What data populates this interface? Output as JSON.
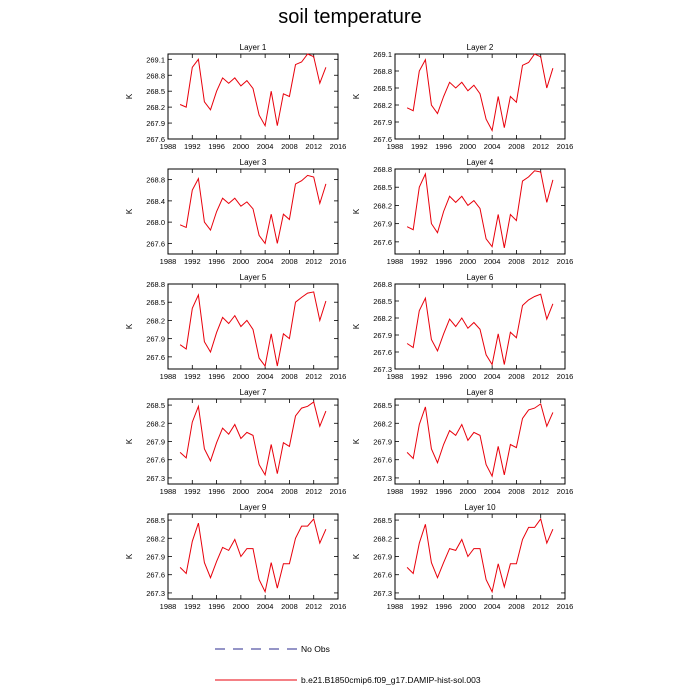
{
  "title": "soil temperature",
  "colors": {
    "obs": "#2b2b8f",
    "model": "#e8000b"
  },
  "legend": {
    "placement": "bottom-center",
    "entries": [
      {
        "label": "No Obs",
        "style": "dashed",
        "color": "#2b2b8f"
      },
      {
        "label": "b.e21.B1850cmip6.f09_g17.DAMIP-hist-sol.003",
        "style": "solid",
        "color": "#e8000b"
      }
    ]
  },
  "chart_data": [
    {
      "type": "line",
      "title": "Layer 1",
      "ylabel": "K",
      "xlim": [
        1988,
        2016
      ],
      "xticks": [
        1988,
        1992,
        1996,
        2000,
        2004,
        2008,
        2012,
        2016
      ],
      "ylim": [
        267.6,
        269.2
      ],
      "yticks": [
        "267.6",
        "267.9",
        "268.2",
        "268.5",
        "268.8",
        "269.1"
      ],
      "ytick_values": [
        267.6,
        267.9,
        268.2,
        268.5,
        268.8,
        269.1
      ],
      "x": [
        1990,
        1991,
        1992,
        1993,
        1994,
        1995,
        1996,
        1997,
        1998,
        1999,
        2000,
        2001,
        2002,
        2003,
        2004,
        2005,
        2006,
        2007,
        2008,
        2009,
        2010,
        2011,
        2012,
        2013,
        2014
      ],
      "series": [
        {
          "values": [
            268.25,
            268.2,
            268.95,
            269.1,
            268.3,
            268.15,
            268.5,
            268.75,
            268.65,
            268.75,
            268.6,
            268.7,
            268.55,
            268.05,
            267.85,
            268.5,
            267.85,
            268.45,
            268.4,
            269.0,
            269.05,
            269.2,
            269.15,
            268.65,
            268.95
          ]
        }
      ]
    },
    {
      "type": "line",
      "title": "Layer 2",
      "ylabel": "K",
      "xlim": [
        1988,
        2016
      ],
      "xticks": [
        1988,
        1992,
        1996,
        2000,
        2004,
        2008,
        2012,
        2016
      ],
      "ylim": [
        267.6,
        269.1
      ],
      "yticks": [
        "267.6",
        "267.9",
        "268.2",
        "268.5",
        "268.8",
        "269.1"
      ],
      "ytick_values": [
        267.6,
        267.9,
        268.2,
        268.5,
        268.8,
        269.1
      ],
      "x": [
        1990,
        1991,
        1992,
        1993,
        1994,
        1995,
        1996,
        1997,
        1998,
        1999,
        2000,
        2001,
        2002,
        2003,
        2004,
        2005,
        2006,
        2007,
        2008,
        2009,
        2010,
        2011,
        2012,
        2013,
        2014
      ],
      "series": [
        {
          "values": [
            268.15,
            268.1,
            268.8,
            269.0,
            268.2,
            268.05,
            268.35,
            268.6,
            268.5,
            268.6,
            268.45,
            268.55,
            268.4,
            267.95,
            267.75,
            268.35,
            267.8,
            268.35,
            268.25,
            268.9,
            268.95,
            269.1,
            269.05,
            268.5,
            268.85
          ]
        }
      ]
    },
    {
      "type": "line",
      "title": "Layer 3",
      "ylabel": "K",
      "xlim": [
        1988,
        2016
      ],
      "xticks": [
        1988,
        1992,
        1996,
        2000,
        2004,
        2008,
        2012,
        2016
      ],
      "ylim": [
        267.4,
        269.0
      ],
      "yticks": [
        "267.6",
        "268.0",
        "268.4",
        "268.8"
      ],
      "ytick_values": [
        267.6,
        268.0,
        268.4,
        268.8
      ],
      "x": [
        1990,
        1991,
        1992,
        1993,
        1994,
        1995,
        1996,
        1997,
        1998,
        1999,
        2000,
        2001,
        2002,
        2003,
        2004,
        2005,
        2006,
        2007,
        2008,
        2009,
        2010,
        2011,
        2012,
        2013,
        2014
      ],
      "series": [
        {
          "values": [
            267.95,
            267.9,
            268.6,
            268.82,
            268.0,
            267.85,
            268.2,
            268.45,
            268.35,
            268.45,
            268.3,
            268.38,
            268.25,
            267.75,
            267.6,
            268.15,
            267.6,
            268.15,
            268.05,
            268.72,
            268.78,
            268.88,
            268.85,
            268.35,
            268.72
          ]
        }
      ]
    },
    {
      "type": "line",
      "title": "Layer 4",
      "ylabel": "K",
      "xlim": [
        1988,
        2016
      ],
      "xticks": [
        1988,
        1992,
        1996,
        2000,
        2004,
        2008,
        2012,
        2016
      ],
      "ylim": [
        267.4,
        268.8
      ],
      "yticks": [
        "267.6",
        "267.9",
        "268.2",
        "268.5",
        "268.8"
      ],
      "ytick_values": [
        267.6,
        267.9,
        268.2,
        268.5,
        268.8
      ],
      "x": [
        1990,
        1991,
        1992,
        1993,
        1994,
        1995,
        1996,
        1997,
        1998,
        1999,
        2000,
        2001,
        2002,
        2003,
        2004,
        2005,
        2006,
        2007,
        2008,
        2009,
        2010,
        2011,
        2012,
        2013,
        2014
      ],
      "series": [
        {
          "values": [
            267.85,
            267.8,
            268.5,
            268.72,
            267.9,
            267.75,
            268.1,
            268.35,
            268.25,
            268.35,
            268.2,
            268.28,
            268.15,
            267.65,
            267.52,
            268.05,
            267.5,
            268.05,
            267.95,
            268.6,
            268.67,
            268.77,
            268.75,
            268.25,
            268.62
          ]
        }
      ]
    },
    {
      "type": "line",
      "title": "Layer 5",
      "ylabel": "K",
      "xlim": [
        1988,
        2016
      ],
      "xticks": [
        1988,
        1992,
        1996,
        2000,
        2004,
        2008,
        2012,
        2016
      ],
      "ylim": [
        267.4,
        268.8
      ],
      "yticks": [
        "267.6",
        "267.9",
        "268.2",
        "268.5",
        "268.8"
      ],
      "ytick_values": [
        267.6,
        267.9,
        268.2,
        268.5,
        268.8
      ],
      "x": [
        1990,
        1991,
        1992,
        1993,
        1994,
        1995,
        1996,
        1997,
        1998,
        1999,
        2000,
        2001,
        2002,
        2003,
        2004,
        2005,
        2006,
        2007,
        2008,
        2009,
        2010,
        2011,
        2012,
        2013,
        2014
      ],
      "series": [
        {
          "values": [
            267.8,
            267.73,
            268.4,
            268.62,
            267.85,
            267.68,
            268.0,
            268.25,
            268.15,
            268.28,
            268.1,
            268.2,
            268.05,
            267.58,
            267.45,
            267.98,
            267.45,
            267.98,
            267.9,
            268.5,
            268.58,
            268.65,
            268.67,
            268.2,
            268.52
          ]
        }
      ]
    },
    {
      "type": "line",
      "title": "Layer 6",
      "ylabel": "K",
      "xlim": [
        1988,
        2016
      ],
      "xticks": [
        1988,
        1992,
        1996,
        2000,
        2004,
        2008,
        2012,
        2016
      ],
      "ylim": [
        267.3,
        268.8
      ],
      "yticks": [
        "267.3",
        "267.6",
        "267.9",
        "268.2",
        "268.5",
        "268.8"
      ],
      "ytick_values": [
        267.3,
        267.6,
        267.9,
        268.2,
        268.5,
        268.8
      ],
      "x": [
        1990,
        1991,
        1992,
        1993,
        1994,
        1995,
        1996,
        1997,
        1998,
        1999,
        2000,
        2001,
        2002,
        2003,
        2004,
        2005,
        2006,
        2007,
        2008,
        2009,
        2010,
        2011,
        2012,
        2013,
        2014
      ],
      "series": [
        {
          "values": [
            267.75,
            267.68,
            268.33,
            268.55,
            267.82,
            267.62,
            267.92,
            268.18,
            268.05,
            268.2,
            268.02,
            268.12,
            268.0,
            267.55,
            267.38,
            267.92,
            267.38,
            267.95,
            267.85,
            268.42,
            268.52,
            268.58,
            268.62,
            268.18,
            268.45
          ]
        }
      ]
    },
    {
      "type": "line",
      "title": "Layer 7",
      "ylabel": "K",
      "xlim": [
        1988,
        2016
      ],
      "xticks": [
        1988,
        1992,
        1996,
        2000,
        2004,
        2008,
        2012,
        2016
      ],
      "ylim": [
        267.2,
        268.6
      ],
      "yticks": [
        "267.3",
        "267.6",
        "267.9",
        "268.2",
        "268.5"
      ],
      "ytick_values": [
        267.3,
        267.6,
        267.9,
        268.2,
        268.5
      ],
      "x": [
        1990,
        1991,
        1992,
        1993,
        1994,
        1995,
        1996,
        1997,
        1998,
        1999,
        2000,
        2001,
        2002,
        2003,
        2004,
        2005,
        2006,
        2007,
        2008,
        2009,
        2010,
        2011,
        2012,
        2013,
        2014
      ],
      "series": [
        {
          "values": [
            267.72,
            267.63,
            268.22,
            268.48,
            267.78,
            267.58,
            267.88,
            268.12,
            268.02,
            268.18,
            267.95,
            268.05,
            268.0,
            267.52,
            267.35,
            267.85,
            267.37,
            267.88,
            267.82,
            268.32,
            268.45,
            268.48,
            268.55,
            268.15,
            268.4
          ]
        }
      ]
    },
    {
      "type": "line",
      "title": "Layer 8",
      "ylabel": "K",
      "xlim": [
        1988,
        2016
      ],
      "xticks": [
        1988,
        1992,
        1996,
        2000,
        2004,
        2008,
        2012,
        2016
      ],
      "ylim": [
        267.2,
        268.6
      ],
      "yticks": [
        "267.3",
        "267.6",
        "267.9",
        "268.2",
        "268.5"
      ],
      "ytick_values": [
        267.3,
        267.6,
        267.9,
        268.2,
        268.5
      ],
      "x": [
        1990,
        1991,
        1992,
        1993,
        1994,
        1995,
        1996,
        1997,
        1998,
        1999,
        2000,
        2001,
        2002,
        2003,
        2004,
        2005,
        2006,
        2007,
        2008,
        2009,
        2010,
        2011,
        2012,
        2013,
        2014
      ],
      "series": [
        {
          "values": [
            267.72,
            267.62,
            268.18,
            268.47,
            267.78,
            267.55,
            267.85,
            268.08,
            268.0,
            268.18,
            267.92,
            268.05,
            268.0,
            267.52,
            267.33,
            267.82,
            267.35,
            267.85,
            267.8,
            268.28,
            268.42,
            268.45,
            268.52,
            268.15,
            268.38
          ]
        }
      ]
    },
    {
      "type": "line",
      "title": "Layer 9",
      "ylabel": "K",
      "xlim": [
        1988,
        2016
      ],
      "xticks": [
        1988,
        1992,
        1996,
        2000,
        2004,
        2008,
        2012,
        2016
      ],
      "ylim": [
        267.2,
        268.6
      ],
      "yticks": [
        "267.3",
        "267.6",
        "267.9",
        "268.2",
        "268.5"
      ],
      "ytick_values": [
        267.3,
        267.6,
        267.9,
        268.2,
        268.5
      ],
      "x": [
        1990,
        1991,
        1992,
        1993,
        1994,
        1995,
        1996,
        1997,
        1998,
        1999,
        2000,
        2001,
        2002,
        2003,
        2004,
        2005,
        2006,
        2007,
        2008,
        2009,
        2010,
        2011,
        2012,
        2013,
        2014
      ],
      "series": [
        {
          "values": [
            267.72,
            267.62,
            268.15,
            268.45,
            267.8,
            267.55,
            267.82,
            268.05,
            268.0,
            268.18,
            267.9,
            268.03,
            268.03,
            267.52,
            267.32,
            267.8,
            267.38,
            267.78,
            267.78,
            268.2,
            268.4,
            268.4,
            268.52,
            268.12,
            268.35
          ]
        }
      ]
    },
    {
      "type": "line",
      "title": "Layer 10",
      "ylabel": "K",
      "xlim": [
        1988,
        2016
      ],
      "xticks": [
        1988,
        1992,
        1996,
        2000,
        2004,
        2008,
        2012,
        2016
      ],
      "ylim": [
        267.2,
        268.6
      ],
      "yticks": [
        "267.3",
        "267.6",
        "267.9",
        "268.2",
        "268.5"
      ],
      "ytick_values": [
        267.3,
        267.6,
        267.9,
        268.2,
        268.5
      ],
      "x": [
        1990,
        1991,
        1992,
        1993,
        1994,
        1995,
        1996,
        1997,
        1998,
        1999,
        2000,
        2001,
        2002,
        2003,
        2004,
        2005,
        2006,
        2007,
        2008,
        2009,
        2010,
        2011,
        2012,
        2013,
        2014
      ],
      "series": [
        {
          "values": [
            267.72,
            267.62,
            268.12,
            268.43,
            267.8,
            267.55,
            267.8,
            268.03,
            268.0,
            268.18,
            267.9,
            268.03,
            268.03,
            267.52,
            267.32,
            267.78,
            267.4,
            267.78,
            267.78,
            268.18,
            268.38,
            268.38,
            268.52,
            268.12,
            268.35
          ]
        }
      ]
    }
  ]
}
